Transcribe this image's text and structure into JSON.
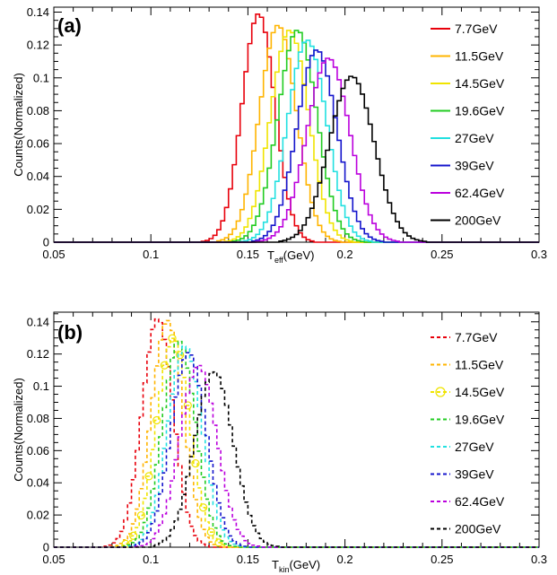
{
  "chart_data": [
    {
      "type": "line",
      "panel_label": "(a)",
      "ylabel": "Counts(Normalized)",
      "xlabel_main": "T",
      "xlabel_sub": "eff",
      "xlabel_unit": "(GeV)",
      "xlim": [
        0.05,
        0.3
      ],
      "ylim": [
        0,
        0.143
      ],
      "x_ticks": [
        "0.05",
        "0.1",
        "0.15",
        "0.2",
        "0.25",
        "0.3"
      ],
      "y_ticks": [
        "0",
        "0.02",
        "0.04",
        "0.06",
        "0.08",
        "0.1",
        "0.12",
        "0.14"
      ],
      "line_style": "solid",
      "legend_position": "right",
      "series": [
        {
          "name": "7.7GeV",
          "color": "#e8000b",
          "center": 0.1555,
          "width": 0.0085,
          "peak": 0.139
        },
        {
          "name": "11.5GeV",
          "color": "#ffb400",
          "center": 0.1655,
          "width": 0.0095,
          "peak": 0.132
        },
        {
          "name": "14.5GeV",
          "color": "#f0e400",
          "center": 0.1715,
          "width": 0.0098,
          "peak": 0.129
        },
        {
          "name": "19.6GeV",
          "color": "#22cc22",
          "center": 0.1755,
          "width": 0.01,
          "peak": 0.129
        },
        {
          "name": "27GeV",
          "color": "#22e0e0",
          "center": 0.1805,
          "width": 0.01,
          "peak": 0.123
        },
        {
          "name": "39GeV",
          "color": "#1515cc",
          "center": 0.1855,
          "width": 0.0102,
          "peak": 0.117
        },
        {
          "name": "62.4GeV",
          "color": "#bb00dd",
          "center": 0.1915,
          "width": 0.011,
          "peak": 0.112
        },
        {
          "name": "200GeV",
          "color": "#000000",
          "center": 0.2035,
          "width": 0.0115,
          "peak": 0.101
        }
      ]
    },
    {
      "type": "line",
      "panel_label": "(b)",
      "ylabel": "Counts(Normalized)",
      "xlabel_main": "T",
      "xlabel_sub": "kin",
      "xlabel_unit": "(GeV)",
      "xlim": [
        0.05,
        0.3
      ],
      "ylim": [
        0,
        0.146
      ],
      "x_ticks": [
        "0.05",
        "0.1",
        "0.15",
        "0.2",
        "0.25",
        "0.3"
      ],
      "y_ticks": [
        "0",
        "0.02",
        "0.04",
        "0.06",
        "0.08",
        "0.1",
        "0.12",
        "0.14"
      ],
      "line_style": "dashed",
      "legend_position": "right",
      "series": [
        {
          "name": "7.7GeV",
          "color": "#e8000b",
          "center": 0.1035,
          "width": 0.008,
          "peak": 0.142
        },
        {
          "name": "11.5GeV",
          "color": "#ffb400",
          "center": 0.1085,
          "width": 0.0082,
          "peak": 0.141
        },
        {
          "name": "14.5GeV",
          "color": "#f0e400",
          "center": 0.1115,
          "width": 0.0085,
          "peak": 0.13,
          "markers": true
        },
        {
          "name": "19.6GeV",
          "color": "#22cc22",
          "center": 0.1145,
          "width": 0.0085,
          "peak": 0.128
        },
        {
          "name": "27GeV",
          "color": "#22e0e0",
          "center": 0.1175,
          "width": 0.0088,
          "peak": 0.125
        },
        {
          "name": "39GeV",
          "color": "#1515cc",
          "center": 0.1195,
          "width": 0.009,
          "peak": 0.121
        },
        {
          "name": "62.4GeV",
          "color": "#bb00dd",
          "center": 0.1245,
          "width": 0.0095,
          "peak": 0.113
        },
        {
          "name": "200GeV",
          "color": "#000000",
          "center": 0.1325,
          "width": 0.01,
          "peak": 0.109
        }
      ]
    }
  ]
}
